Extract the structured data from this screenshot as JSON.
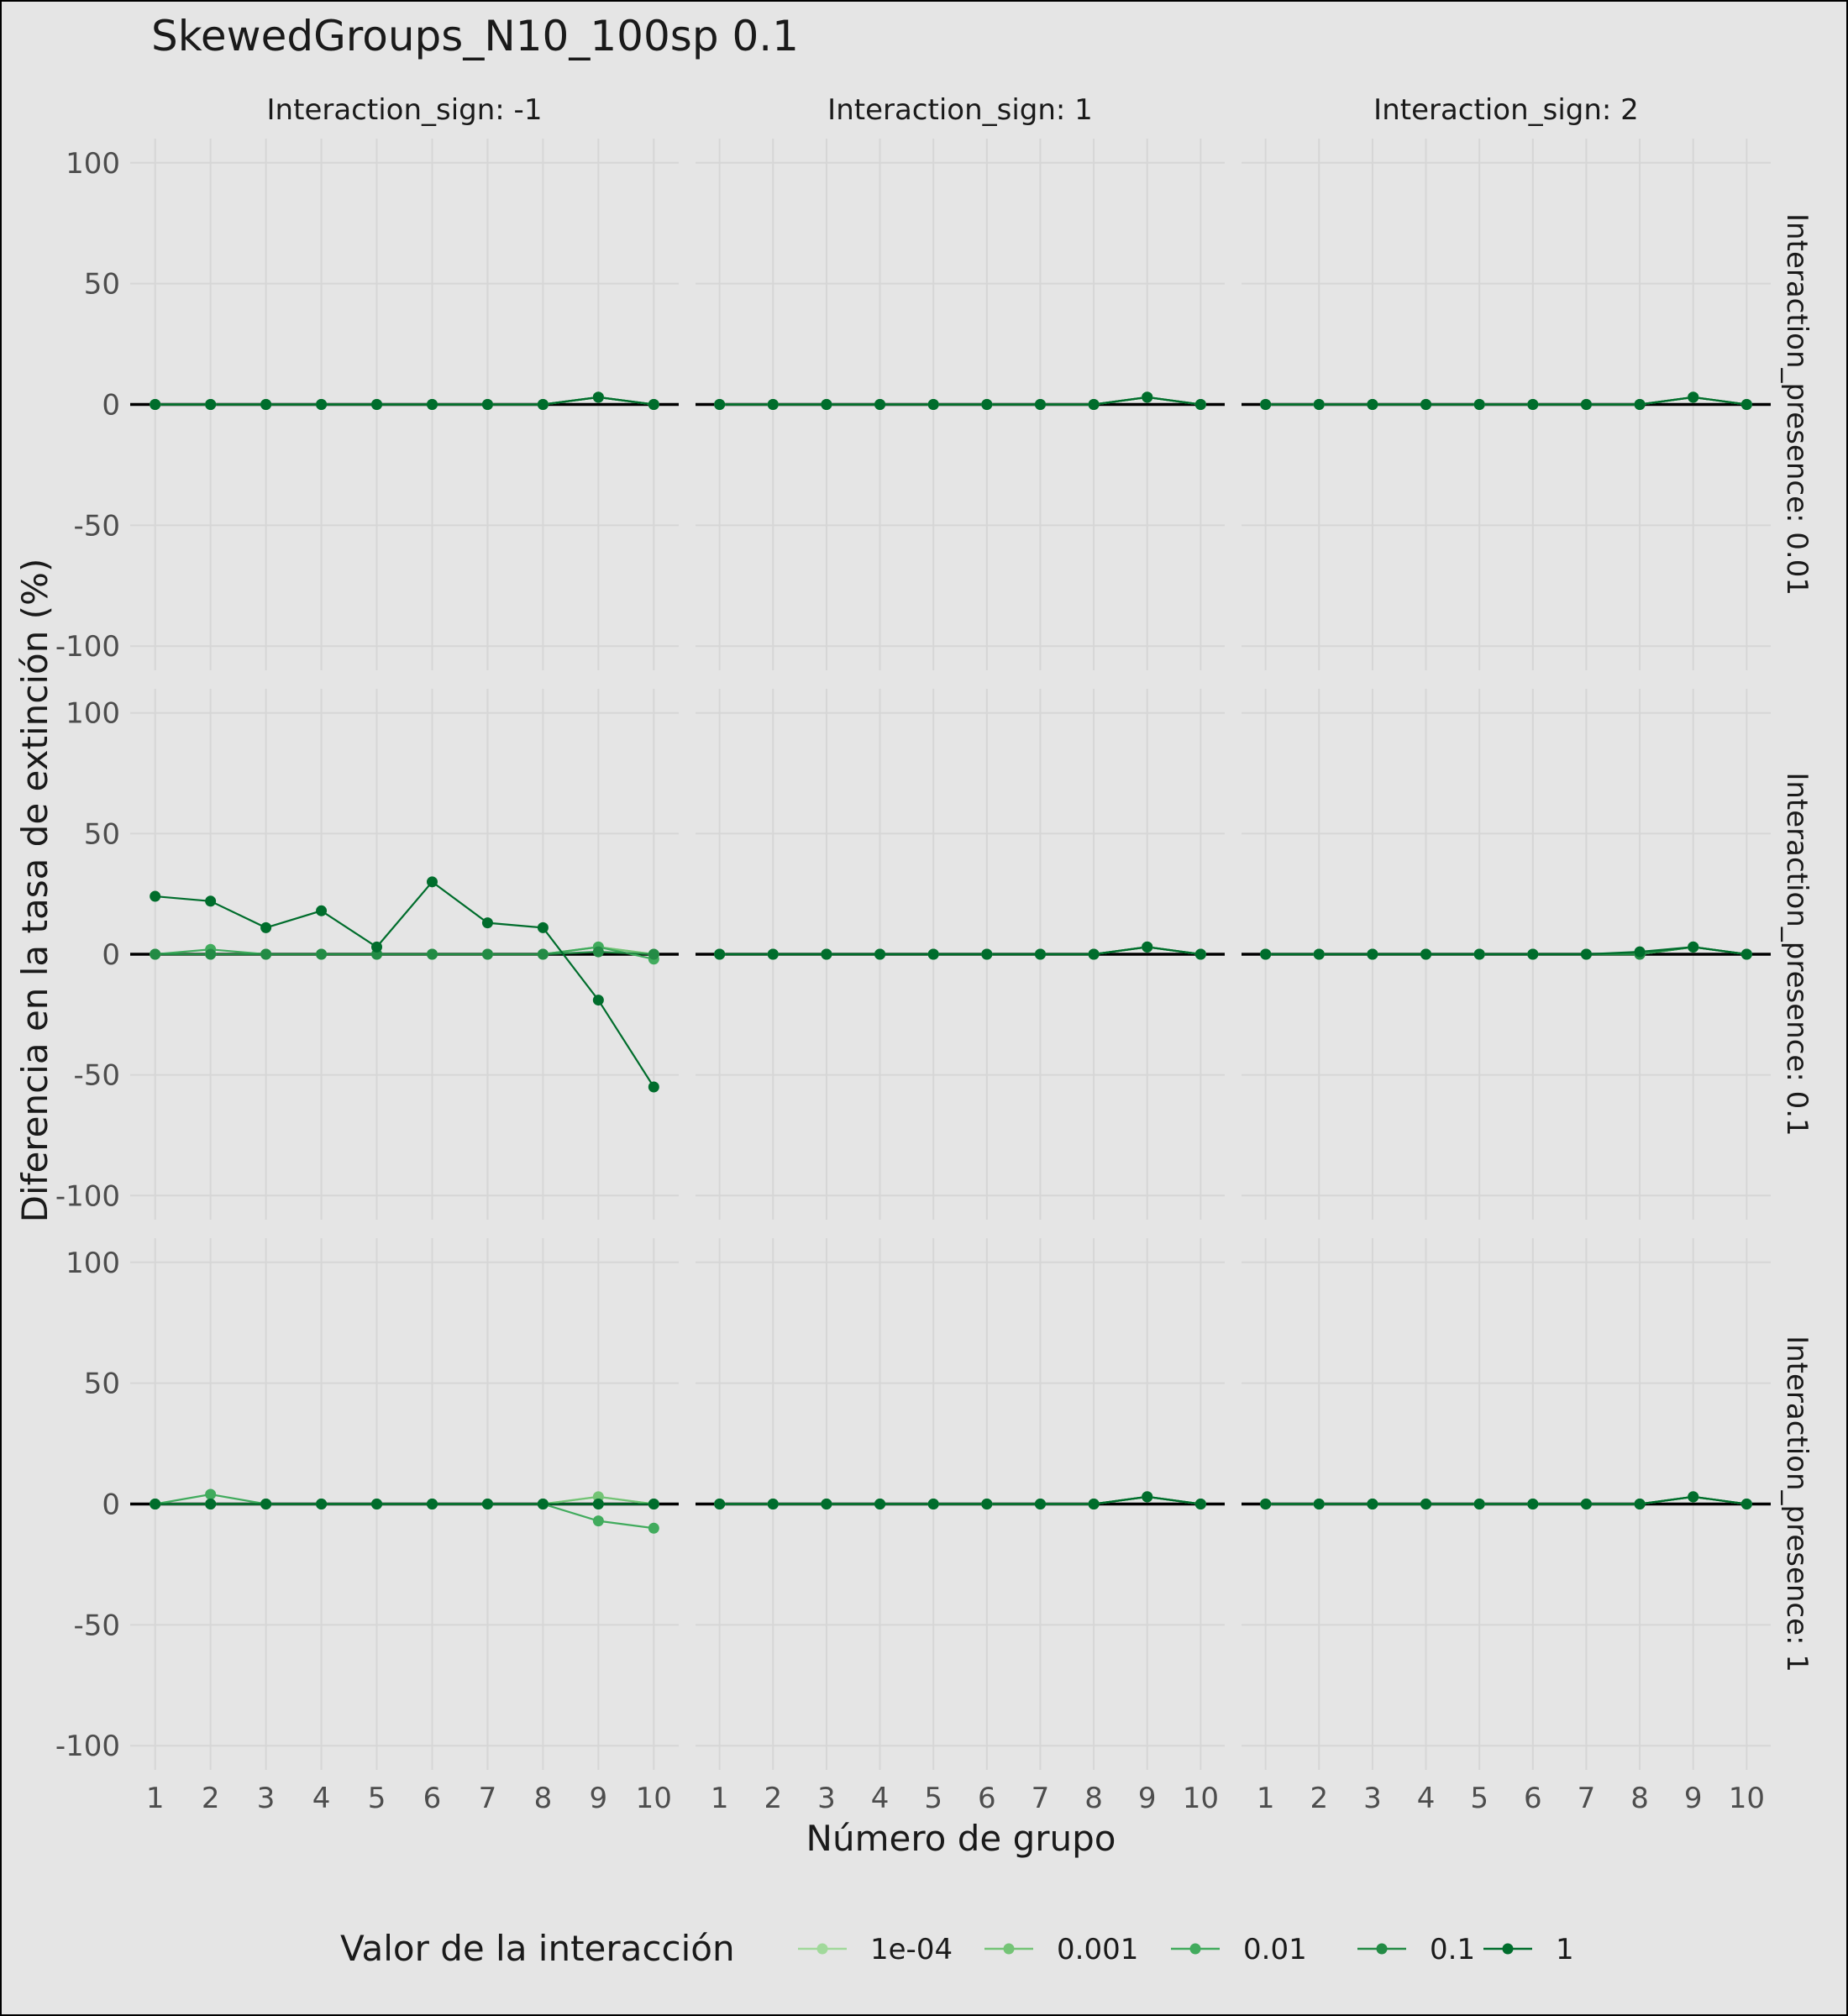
{
  "chart_data": {
    "type": "line",
    "title": "SkewedGroups_N10_100sp 0.1",
    "xlabel": "Número de grupo",
    "ylabel": "Diferencia en la tasa de extinción (%)",
    "x": [
      1,
      2,
      3,
      4,
      5,
      6,
      7,
      8,
      9,
      10
    ],
    "xticks": [
      "1",
      "2",
      "3",
      "4",
      "5",
      "6",
      "7",
      "8",
      "9",
      "10"
    ],
    "yticks": [
      "100",
      "50",
      "0",
      "-50",
      "-100"
    ],
    "ytick_values": [
      100,
      50,
      0,
      -50,
      -100
    ],
    "xlim": [
      0.55,
      10.45
    ],
    "ylim": [
      -110,
      110
    ],
    "grid": true,
    "legend": {
      "title": "Valor de la interacción",
      "position": "bottom",
      "entries": [
        {
          "label": "1e-04",
          "color": "#a1d99b"
        },
        {
          "label": "0.001",
          "color": "#74c476"
        },
        {
          "label": "0.01",
          "color": "#41ab5d"
        },
        {
          "label": "0.1",
          "color": "#238b45"
        },
        {
          "label": "1",
          "color": "#006d2c"
        }
      ]
    },
    "col_facets": [
      "Interaction_sign: -1",
      "Interaction_sign: 1",
      "Interaction_sign: 2"
    ],
    "row_facets": [
      "Interaction_presence: 0.01",
      "Interaction_presence: 0.1",
      "Interaction_presence: 1"
    ],
    "panels": [
      [
        {
          "series": [
            {
              "name": "1e-04",
              "values": [
                0,
                0,
                0,
                0,
                0,
                0,
                0,
                0,
                3,
                0
              ]
            },
            {
              "name": "0.001",
              "values": [
                0,
                0,
                0,
                0,
                0,
                0,
                0,
                0,
                3,
                0
              ]
            },
            {
              "name": "0.01",
              "values": [
                0,
                0,
                0,
                0,
                0,
                0,
                0,
                0,
                3,
                0
              ]
            },
            {
              "name": "0.1",
              "values": [
                0,
                0,
                0,
                0,
                0,
                0,
                0,
                0,
                3,
                0
              ]
            },
            {
              "name": "1",
              "values": [
                0,
                0,
                0,
                0,
                0,
                0,
                0,
                0,
                3,
                0
              ]
            }
          ]
        },
        {
          "series": [
            {
              "name": "1e-04",
              "values": [
                0,
                0,
                0,
                0,
                0,
                0,
                0,
                0,
                3,
                0
              ]
            },
            {
              "name": "0.001",
              "values": [
                0,
                0,
                0,
                0,
                0,
                0,
                0,
                0,
                3,
                0
              ]
            },
            {
              "name": "0.01",
              "values": [
                0,
                0,
                0,
                0,
                0,
                0,
                0,
                0,
                3,
                0
              ]
            },
            {
              "name": "0.1",
              "values": [
                0,
                0,
                0,
                0,
                0,
                0,
                0,
                0,
                3,
                0
              ]
            },
            {
              "name": "1",
              "values": [
                0,
                0,
                0,
                0,
                0,
                0,
                0,
                0,
                3,
                0
              ]
            }
          ]
        },
        {
          "series": [
            {
              "name": "1e-04",
              "values": [
                0,
                0,
                0,
                0,
                0,
                0,
                0,
                0,
                3,
                0
              ]
            },
            {
              "name": "0.001",
              "values": [
                0,
                0,
                0,
                0,
                0,
                0,
                0,
                0,
                3,
                0
              ]
            },
            {
              "name": "0.01",
              "values": [
                0,
                0,
                0,
                0,
                0,
                0,
                0,
                0,
                3,
                0
              ]
            },
            {
              "name": "0.1",
              "values": [
                0,
                0,
                0,
                0,
                0,
                0,
                0,
                0,
                3,
                0
              ]
            },
            {
              "name": "1",
              "values": [
                0,
                0,
                0,
                0,
                0,
                0,
                0,
                0,
                3,
                0
              ]
            }
          ]
        }
      ],
      [
        {
          "series": [
            {
              "name": "1e-04",
              "values": [
                0,
                0,
                0,
                0,
                0,
                0,
                0,
                0,
                3,
                0
              ]
            },
            {
              "name": "0.001",
              "values": [
                0,
                0,
                0,
                0,
                0,
                0,
                0,
                0,
                3,
                0
              ]
            },
            {
              "name": "0.01",
              "values": [
                0,
                2,
                0,
                0,
                0,
                0,
                0,
                0,
                3,
                -2
              ]
            },
            {
              "name": "0.1",
              "values": [
                0,
                0,
                0,
                0,
                0,
                0,
                0,
                0,
                1,
                0
              ]
            },
            {
              "name": "1",
              "values": [
                24,
                22,
                11,
                18,
                3,
                30,
                13,
                11,
                -19,
                -55
              ]
            }
          ]
        },
        {
          "series": [
            {
              "name": "1e-04",
              "values": [
                0,
                0,
                0,
                0,
                0,
                0,
                0,
                0,
                3,
                0
              ]
            },
            {
              "name": "0.001",
              "values": [
                0,
                0,
                0,
                0,
                0,
                0,
                0,
                0,
                3,
                0
              ]
            },
            {
              "name": "0.01",
              "values": [
                0,
                0,
                0,
                0,
                0,
                0,
                0,
                0,
                3,
                0
              ]
            },
            {
              "name": "0.1",
              "values": [
                0,
                0,
                0,
                0,
                0,
                0,
                0,
                0,
                3,
                0
              ]
            },
            {
              "name": "1",
              "values": [
                0,
                0,
                0,
                0,
                0,
                0,
                0,
                0,
                3,
                0
              ]
            }
          ]
        },
        {
          "series": [
            {
              "name": "1e-04",
              "values": [
                0,
                0,
                0,
                0,
                0,
                0,
                0,
                0,
                3,
                0
              ]
            },
            {
              "name": "0.001",
              "values": [
                0,
                0,
                0,
                0,
                0,
                0,
                0,
                0,
                3,
                0
              ]
            },
            {
              "name": "0.01",
              "values": [
                0,
                0,
                0,
                0,
                0,
                0,
                0,
                0,
                3,
                0
              ]
            },
            {
              "name": "0.1",
              "values": [
                0,
                0,
                0,
                0,
                0,
                0,
                0,
                0,
                3,
                0
              ]
            },
            {
              "name": "1",
              "values": [
                0,
                0,
                0,
                0,
                0,
                0,
                0,
                1,
                3,
                0
              ]
            }
          ]
        }
      ],
      [
        {
          "series": [
            {
              "name": "1e-04",
              "values": [
                0,
                0,
                0,
                0,
                0,
                0,
                0,
                0,
                3,
                0
              ]
            },
            {
              "name": "0.001",
              "values": [
                0,
                0,
                0,
                0,
                0,
                0,
                0,
                0,
                3,
                0
              ]
            },
            {
              "name": "0.01",
              "values": [
                0,
                4,
                0,
                0,
                0,
                0,
                0,
                0,
                -7,
                -10
              ]
            },
            {
              "name": "0.1",
              "values": [
                0,
                0,
                0,
                0,
                0,
                0,
                0,
                0,
                0,
                0
              ]
            },
            {
              "name": "1",
              "values": [
                0,
                0,
                0,
                0,
                0,
                0,
                0,
                0,
                0,
                0
              ]
            }
          ]
        },
        {
          "series": [
            {
              "name": "1e-04",
              "values": [
                0,
                0,
                0,
                0,
                0,
                0,
                0,
                0,
                3,
                0
              ]
            },
            {
              "name": "0.001",
              "values": [
                0,
                0,
                0,
                0,
                0,
                0,
                0,
                0,
                3,
                0
              ]
            },
            {
              "name": "0.01",
              "values": [
                0,
                0,
                0,
                0,
                0,
                0,
                0,
                0,
                3,
                0
              ]
            },
            {
              "name": "0.1",
              "values": [
                0,
                0,
                0,
                0,
                0,
                0,
                0,
                0,
                3,
                0
              ]
            },
            {
              "name": "1",
              "values": [
                0,
                0,
                0,
                0,
                0,
                0,
                0,
                0,
                3,
                0
              ]
            }
          ]
        },
        {
          "series": [
            {
              "name": "1e-04",
              "values": [
                0,
                0,
                0,
                0,
                0,
                0,
                0,
                0,
                3,
                0
              ]
            },
            {
              "name": "0.001",
              "values": [
                0,
                0,
                0,
                0,
                0,
                0,
                0,
                0,
                3,
                0
              ]
            },
            {
              "name": "0.01",
              "values": [
                0,
                0,
                0,
                0,
                0,
                0,
                0,
                0,
                3,
                0
              ]
            },
            {
              "name": "0.1",
              "values": [
                0,
                0,
                0,
                0,
                0,
                0,
                0,
                0,
                3,
                0
              ]
            },
            {
              "name": "1",
              "values": [
                0,
                0,
                0,
                0,
                0,
                0,
                0,
                0,
                3,
                0
              ]
            }
          ]
        }
      ]
    ]
  }
}
